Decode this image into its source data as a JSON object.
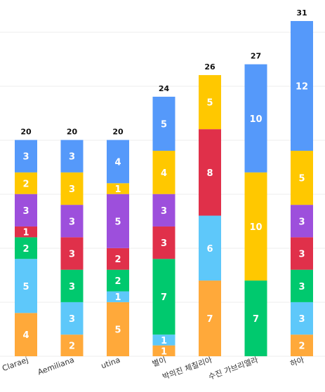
{
  "chart_data": {
    "type": "bar",
    "stacked": true,
    "categories": [
      "Claraej",
      "Aemiliana",
      "utina",
      "별이",
      "박의진 체칠리아",
      "수진 가브리엘라",
      "하아"
    ],
    "totals": [
      20,
      20,
      20,
      24,
      26,
      27,
      31
    ],
    "series": [
      {
        "color": "#ffa93a",
        "values": [
          4,
          2,
          5,
          1,
          7,
          0,
          2
        ]
      },
      {
        "color": "#5ec8fa",
        "values": [
          5,
          3,
          1,
          1,
          6,
          0,
          3
        ]
      },
      {
        "color": "#00c96e",
        "values": [
          2,
          3,
          2,
          7,
          0,
          7,
          3
        ]
      },
      {
        "color": "#e0304a",
        "values": [
          1,
          3,
          2,
          3,
          8,
          0,
          3
        ]
      },
      {
        "color": "#9d4fdc",
        "values": [
          3,
          3,
          5,
          3,
          0,
          0,
          3
        ]
      },
      {
        "color": "#ffc800",
        "values": [
          2,
          3,
          1,
          4,
          5,
          10,
          5
        ]
      },
      {
        "color": "#5599fa",
        "values": [
          3,
          3,
          4,
          5,
          0,
          10,
          12
        ]
      }
    ],
    "ylim": [
      0,
      31
    ],
    "grid": true,
    "legend": "none",
    "xlabel": "",
    "ylabel": ""
  }
}
